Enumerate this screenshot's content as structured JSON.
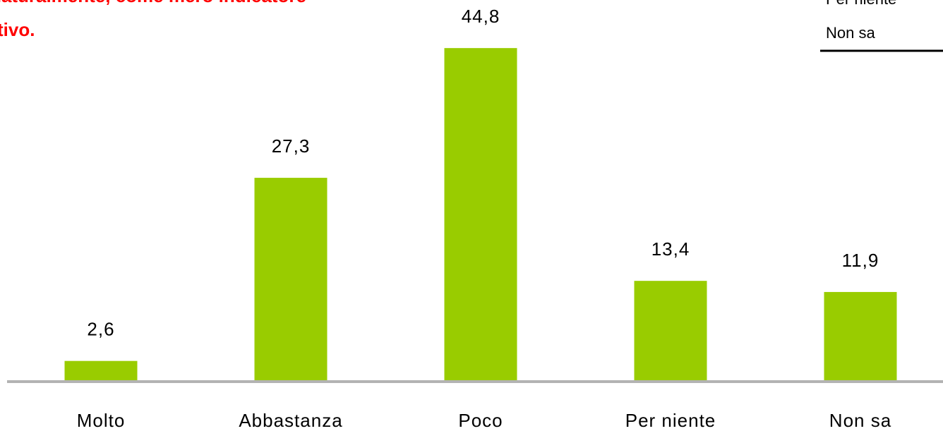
{
  "chart_data": {
    "type": "bar",
    "annotations": [
      "naturalmente, come mero indicatore",
      "tivo."
    ],
    "categories": [
      "Molto",
      "Abbastanza",
      "Poco",
      "Per niente",
      "Non sa"
    ],
    "values": [
      2.6,
      27.3,
      44.8,
      13.4,
      11.9
    ],
    "value_labels": [
      "2,6",
      "27,3",
      "44,8",
      "13,4",
      "11,9"
    ],
    "color": "#99cc00",
    "side_list": [
      "Per niente",
      "Non sa"
    ]
  }
}
